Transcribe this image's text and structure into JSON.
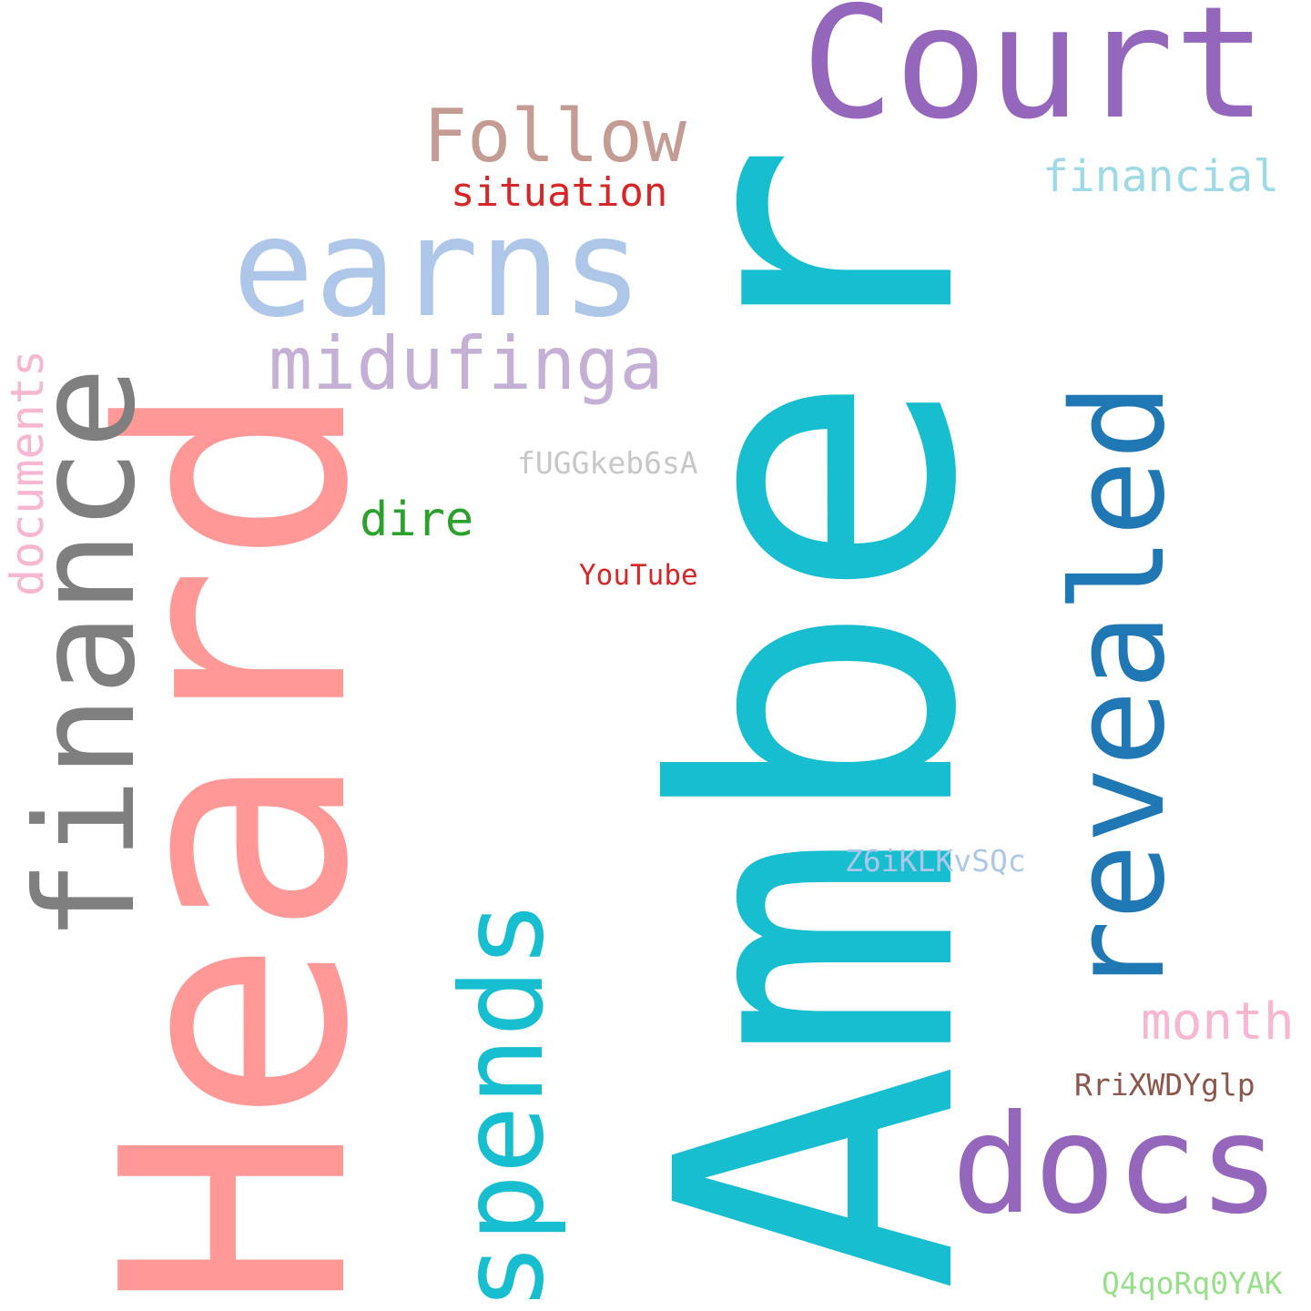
{
  "words": [
    {
      "key": "amber",
      "text": "Amber",
      "color": "#17becf"
    },
    {
      "key": "heard",
      "text": "Heard",
      "color": "#ff9896"
    },
    {
      "key": "court",
      "text": "Court",
      "color": "#9467bd"
    },
    {
      "key": "earns",
      "text": "earns",
      "color": "#aec7e8"
    },
    {
      "key": "finance",
      "text": "finance",
      "color": "#7f7f7f"
    },
    {
      "key": "revealed",
      "text": "revealed",
      "color": "#1f77b4"
    },
    {
      "key": "spends",
      "text": "spends",
      "color": "#17becf"
    },
    {
      "key": "docs",
      "text": "docs",
      "color": "#9467bd"
    },
    {
      "key": "follow",
      "text": "Follow",
      "color": "#c49c94"
    },
    {
      "key": "midufinga",
      "text": "midufinga",
      "color": "#c5b0d5"
    },
    {
      "key": "financial",
      "text": "financial",
      "color": "#9edae5"
    },
    {
      "key": "situation",
      "text": "situation",
      "color": "#d62728"
    },
    {
      "key": "documents",
      "text": "documents",
      "color": "#f7b6d2"
    },
    {
      "key": "dire",
      "text": "dire",
      "color": "#2ca02c"
    },
    {
      "key": "month",
      "text": "month",
      "color": "#f7b6d2"
    },
    {
      "key": "fuggkeb6sa",
      "text": "fUGGkeb6sA",
      "color": "#c7c7c7"
    },
    {
      "key": "youtube",
      "text": "YouTube",
      "color": "#d62728"
    },
    {
      "key": "z6iklkvsqc",
      "text": "Z6iKLKvSQc",
      "color": "#aec7e8"
    },
    {
      "key": "rrixwdyglp",
      "text": "RriXWDYglp",
      "color": "#8c564b"
    },
    {
      "key": "q4qorq0yak",
      "text": "Q4qoRq0YAK",
      "color": "#98df8a"
    }
  ]
}
